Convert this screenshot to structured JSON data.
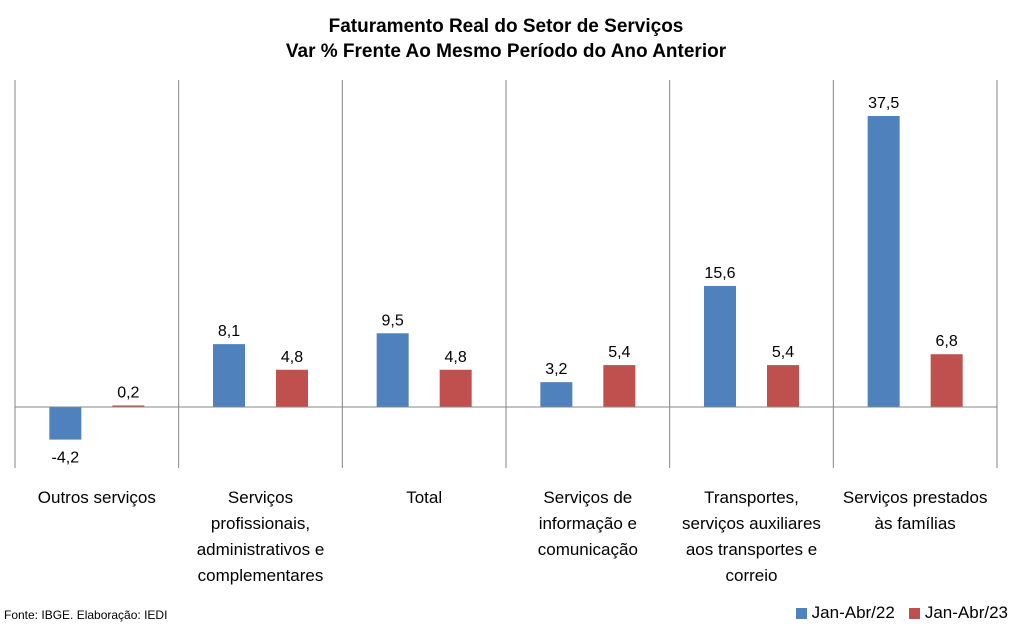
{
  "chart_data": {
    "type": "bar",
    "title": [
      "Faturamento Real do Setor de Serviços",
      "Var % Frente Ao Mesmo Período do Ano Anterior"
    ],
    "categories": [
      [
        "Outros serviços"
      ],
      [
        "Serviços",
        "profissionais,",
        "administrativos e",
        "complementares"
      ],
      [
        "Total"
      ],
      [
        "Serviços de",
        "informação e",
        "comunicação"
      ],
      [
        "Transportes,",
        "serviços auxiliares",
        "aos transportes e",
        "correio"
      ],
      [
        "Serviços prestados",
        "às famílias"
      ]
    ],
    "series": [
      {
        "name": "Jan-Abr/22",
        "color": "#4f81bd",
        "values": [
          -4.2,
          8.1,
          9.5,
          3.2,
          15.6,
          37.5
        ],
        "labels": [
          "-4,2",
          "8,1",
          "9,5",
          "3,2",
          "15,6",
          "37,5"
        ]
      },
      {
        "name": "Jan-Abr/23",
        "color": "#c0504d",
        "values": [
          0.2,
          4.8,
          4.8,
          5.4,
          5.4,
          6.8
        ],
        "labels": [
          "0,2",
          "4,8",
          "4,8",
          "5,4",
          "5,4",
          "6,8"
        ]
      }
    ],
    "ylim": [
      -8,
      42
    ],
    "grid": false,
    "legend_position": "bottom-right",
    "data_labels": true
  },
  "footer": {
    "source": "Fonte: IBGE. Elaboração: IEDI"
  }
}
